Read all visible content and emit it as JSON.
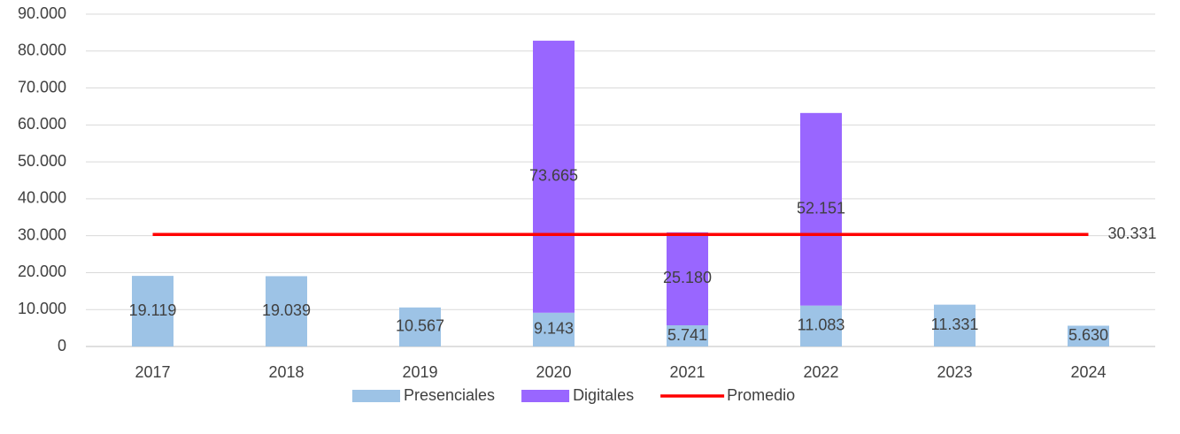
{
  "chart_data": {
    "type": "bar",
    "stacked": true,
    "categories": [
      "2017",
      "2018",
      "2019",
      "2020",
      "2021",
      "2022",
      "2023",
      "2024"
    ],
    "series": [
      {
        "name": "Presenciales",
        "color": "#9dc3e6",
        "values": [
          19119,
          19039,
          10567,
          9143,
          5741,
          11083,
          11331,
          5630
        ],
        "value_labels": [
          "19.119",
          "19.039",
          "10.567",
          "9.143",
          "5.741",
          "11.083",
          "11.331",
          "5.630"
        ]
      },
      {
        "name": "Digitales",
        "color": "#9966ff",
        "values": [
          null,
          null,
          null,
          73665,
          25180,
          52151,
          null,
          null
        ],
        "value_labels": [
          null,
          null,
          null,
          "73.665",
          "25.180",
          "52.151",
          null,
          null
        ]
      },
      {
        "name": "Promedio",
        "type": "line",
        "color": "#ff0000",
        "values": [
          30331,
          30331,
          30331,
          30331,
          30331,
          30331,
          30331,
          30331
        ],
        "value_labels": [
          null,
          null,
          null,
          null,
          null,
          null,
          null,
          "30.331"
        ]
      }
    ],
    "ylim": [
      0,
      90000
    ],
    "yticks": [
      0,
      {
        "value": 10000,
        "label": "10.000"
      },
      {
        "value": 20000,
        "label": "20.000"
      },
      {
        "value": 30000,
        "label": "30.000"
      },
      {
        "value": 40000,
        "label": "40.000"
      },
      {
        "value": 50000,
        "label": "50.000"
      },
      {
        "value": 60000,
        "label": "60.000"
      },
      {
        "value": 70000,
        "label": "70.000"
      },
      {
        "value": 80000,
        "label": "80.000"
      },
      {
        "value": 90000,
        "label": "90.000"
      }
    ],
    "grid": true,
    "legend": "bottom"
  }
}
